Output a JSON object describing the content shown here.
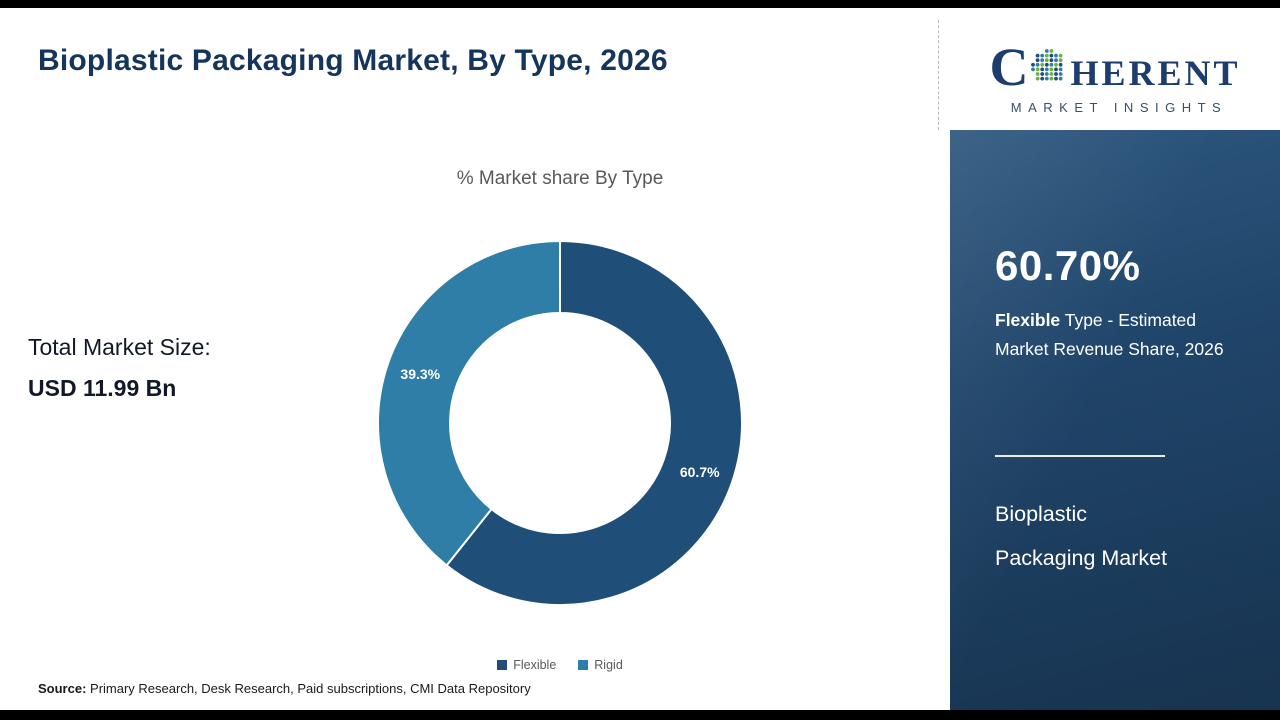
{
  "header": {
    "title": "Bioplastic Packaging Market,  By Type, 2026"
  },
  "chart_data": {
    "type": "pie",
    "donut": true,
    "title": "% Market share  By Type",
    "categories": [
      "Flexible",
      "Rigid"
    ],
    "values": [
      60.7,
      39.3
    ],
    "labels": [
      "60.7%",
      "39.3%"
    ],
    "colors": [
      "#1f4e79",
      "#2e7ea8"
    ],
    "legend_position": "bottom"
  },
  "left_stat": {
    "label": "Total Market Size:",
    "value": "USD 11.99 Bn"
  },
  "source": {
    "label": "Source:",
    "text": " Primary Research, Desk Research, Paid subscriptions, CMI Data Repository"
  },
  "sidebar": {
    "stat_value": "60.70%",
    "desc_bold": "Flexible",
    "desc_rest": " Type - Estimated Market Revenue Share, 2026",
    "market_line1": "Bioplastic",
    "market_line2": "Packaging Market"
  },
  "logo": {
    "c": "C",
    "rest": "HERENT",
    "sub": "MARKET INSIGHTS"
  }
}
